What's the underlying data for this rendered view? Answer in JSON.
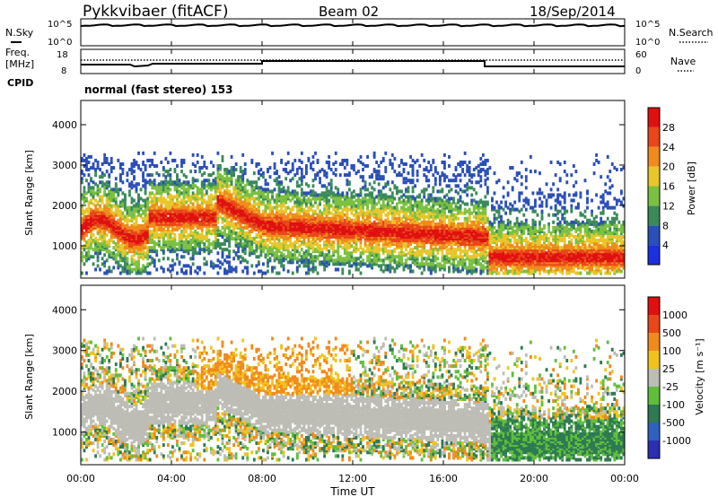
{
  "header": {
    "station": "Pykkvibaer (fitACF)",
    "beam": "Beam 02",
    "date": "18/Sep/2014"
  },
  "strip_noise": {
    "left_label": "N.Sky",
    "right_label": "N.Search",
    "left_ticks": [
      "10^5",
      "10^0"
    ],
    "right_ticks": [
      "10^5",
      "10^0"
    ]
  },
  "strip_freq": {
    "left_label_top": "Freq.",
    "left_label_bottom": "[MHz]",
    "right_label": "Nave",
    "left_ticks": [
      "18",
      "8"
    ],
    "right_ticks": [
      "60",
      "0"
    ]
  },
  "cpid": {
    "label": "CPID",
    "mode": "normal (fast stereo) 153"
  },
  "colors": {
    "power": [
      "#1d30e0",
      "#2b4fb8",
      "#3a8a5a",
      "#7cc040",
      "#e8c62a",
      "#f08a1c",
      "#e8471a",
      "#e01010"
    ],
    "velocity": [
      "#2b2fb0",
      "#2f61c0",
      "#2e7a52",
      "#5fbf3b",
      "#bdbdb6",
      "#f0c31c",
      "#f08a1c",
      "#e8471a",
      "#e01010"
    ]
  },
  "chart_data": [
    {
      "type": "heatmap",
      "panel": "power",
      "ylabel": "Slant Range [km]",
      "yticks": [
        "4000",
        "3000",
        "2000",
        "1000"
      ],
      "ylim": [
        200,
        4600
      ],
      "colorbar_label": "Power [dB]",
      "colorbar_ticks": [
        "28",
        "24",
        "20",
        "16",
        "12",
        "8",
        "4"
      ],
      "color_range": [
        0,
        32
      ]
    },
    {
      "type": "heatmap",
      "panel": "velocity",
      "ylabel": "Slant Range [km]",
      "yticks": [
        "4000",
        "3000",
        "2000",
        "1000"
      ],
      "ylim": [
        200,
        4600
      ],
      "colorbar_label": "Velocity [m s⁻¹]",
      "colorbar_ticks": [
        "1000",
        "500",
        "100",
        "25",
        "-25",
        "-100",
        "-500",
        "-1000"
      ]
    }
  ],
  "x_axis": {
    "label": "Time UT",
    "ticks": [
      "00:00",
      "04:00",
      "08:00",
      "12:00",
      "16:00",
      "20:00",
      "00:00"
    ]
  }
}
